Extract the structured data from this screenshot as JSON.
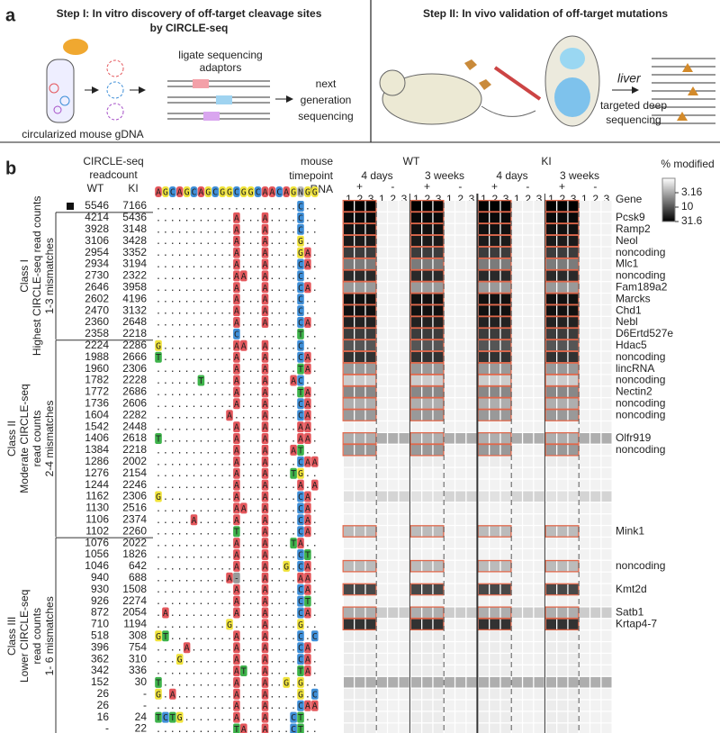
{
  "panel_a": {
    "label": "a",
    "step1_title": [
      "Step I: In vitro discovery of off-target cleavage sites",
      "by CIRCLE-seq"
    ],
    "adaptor_text": [
      "ligate sequencing",
      "adaptors"
    ],
    "ngs_text": [
      "next",
      "generation",
      "sequencing"
    ],
    "gdna_text": "circularized mouse gDNA",
    "step2_title": "Step II: In vivo validation of off-target mutations",
    "organ_text": "liver",
    "deep_seq_text": [
      "targeted deep",
      "sequencing"
    ]
  },
  "panel_b": {
    "label": "b",
    "readcount_header": [
      "CIRCLE-seq",
      "readcount"
    ],
    "readcount_columns": [
      "WT",
      "KI"
    ],
    "heatmap_header": [
      "mouse",
      "timepoint",
      "gRNA"
    ],
    "grna_sequence": "AGCAGCAGCGGCGGCAACAGNGG",
    "base_colors": {
      "A": "#e4575c",
      "C": "#3f8fd8",
      "G": "#f0e33a",
      "T": "#3db24a",
      "N": "#bbbbbb",
      "-": "#999999"
    },
    "genotypes": [
      "WT",
      "KI"
    ],
    "timepoints": [
      "4 days",
      "3 weeks"
    ],
    "grna": [
      "+",
      "-"
    ],
    "replicates": [
      "1",
      "2",
      "3"
    ],
    "gene_header": "Gene",
    "box_color": "#e0674a",
    "colorbar": {
      "title": "% modified",
      "clim": [
        1,
        31.6
      ],
      "ticks": [
        3.16,
        10,
        31.6
      ],
      "log": true
    },
    "on_target": {
      "wt": 5546,
      "ki": 7166,
      "seq": "....................C..",
      "modified": 31,
      "untreated": 1.2,
      "boxed": true
    },
    "classes": [
      {
        "lines": [
          "Class I",
          "Highest CIRCLE-seq read counts",
          "1-3 mismatches"
        ],
        "rows": [
          {
            "wt": 4214,
            "ki": 5436,
            "seq": "...........A...A....C..",
            "gene": "Pcsk9",
            "gene_color": "#6a3d9a",
            "modified": 28,
            "untreated": 1.2,
            "boxed": true
          },
          {
            "wt": 3928,
            "ki": 3148,
            "seq": "...........A...A....C..",
            "gene": "Ramp2",
            "gene_color": "#6a3d9a",
            "modified": 25,
            "untreated": 1.2,
            "boxed": true
          },
          {
            "wt": 3106,
            "ki": 3428,
            "seq": "...........A...A....G..",
            "gene": "Neol",
            "gene_color": "#6a3d9a",
            "modified": 22,
            "untreated": 1.2,
            "boxed": true
          },
          {
            "wt": 2954,
            "ki": 3352,
            "seq": "...........A...A....GA.",
            "gene": "noncoding",
            "gene_color": "#222222",
            "modified": 14,
            "untreated": 1.2,
            "boxed": true
          },
          {
            "wt": 2934,
            "ki": 3194,
            "seq": "...........A...A....CA.",
            "gene": "Mlc1",
            "gene_color": "#6a3d9a",
            "modified": 6,
            "untreated": 1.2,
            "boxed": true
          },
          {
            "wt": 2730,
            "ki": 2322,
            "seq": "...........AA..A....C..",
            "gene": "noncoding",
            "gene_color": "#222222",
            "modified": 18,
            "untreated": 1.2,
            "boxed": true
          },
          {
            "wt": 2646,
            "ki": 3958,
            "seq": "...........A...A....CA.",
            "gene": "Fam189a2",
            "gene_color": "#6a3d9a",
            "modified": 4,
            "untreated": 1.2,
            "boxed": true
          },
          {
            "wt": 2602,
            "ki": 4196,
            "seq": "...........A...A....C..",
            "gene": "Marcks",
            "gene_color": "#6a3d9a",
            "modified": 25,
            "untreated": 1.2,
            "boxed": true
          },
          {
            "wt": 2470,
            "ki": 3132,
            "seq": "...........A...A....C..",
            "gene": "Chd1",
            "gene_color": "#6a3d9a",
            "modified": 25,
            "untreated": 1.2,
            "boxed": true
          },
          {
            "wt": 2360,
            "ki": 2648,
            "seq": "...........A...A....CA.",
            "gene": "Nebl",
            "gene_color": "#6a3d9a",
            "modified": 20,
            "untreated": 1.2,
            "boxed": true
          },
          {
            "wt": 2358,
            "ki": 2218,
            "seq": "...........C........T..",
            "gene": "D6Ertd527e",
            "gene_color": "#6a3d9a",
            "modified": 14,
            "untreated": 1.2,
            "boxed": true
          }
        ]
      },
      {
        "lines": [
          "Class II",
          "Moderate CIRCLE-seq",
          "read counts",
          "2-4 mismatches"
        ],
        "rows": [
          {
            "wt": 2224,
            "ki": 2286,
            "seq": "G..........AA..A....C..",
            "gene": "Hdac5",
            "gene_color": "#6a3d9a",
            "modified": 10,
            "untreated": 1.2,
            "boxed": true
          },
          {
            "wt": 1988,
            "ki": 2666,
            "seq": "T..........A...A....CA.",
            "gene": "noncoding",
            "gene_color": "#222222",
            "modified": 16,
            "untreated": 1.2,
            "boxed": true
          },
          {
            "wt": 1960,
            "ki": 2306,
            "seq": "...........A...A....TA.",
            "gene": "lincRNA",
            "gene_color": "#222222",
            "modified": 4,
            "untreated": 1.2,
            "boxed": true
          },
          {
            "wt": 1782,
            "ki": 2228,
            "seq": "......T....A...A...AC..",
            "gene": "noncoding",
            "gene_color": "#222222",
            "modified": 2,
            "untreated": 1.2,
            "boxed": true
          },
          {
            "wt": 1772,
            "ki": 2686,
            "seq": "...........A...A....TA.",
            "gene": "Nectin2",
            "gene_color": "#6a3d9a",
            "modified": 5,
            "untreated": 1.2,
            "boxed": true
          },
          {
            "wt": 1736,
            "ki": 2606,
            "seq": "...........A...A....CA.",
            "gene": "noncoding",
            "gene_color": "#222222",
            "modified": 3,
            "untreated": 1.2,
            "boxed": true
          },
          {
            "wt": 1604,
            "ki": 2282,
            "seq": "..........A....A....CA.",
            "gene": "noncoding",
            "gene_color": "#222222",
            "modified": 4,
            "untreated": 1.2,
            "boxed": true
          },
          {
            "wt": 1542,
            "ki": 2448,
            "seq": "...........A...A....AA.",
            "modified": 1.2,
            "untreated": 1.2,
            "boxed": false
          },
          {
            "wt": 1406,
            "ki": 2618,
            "seq": "T..........A...A....AA.",
            "gene": "Olfr919",
            "gene_color": "#6a3d9a",
            "modified": 3,
            "untreated": 3,
            "boxed": true
          },
          {
            "wt": 1384,
            "ki": 2218,
            "seq": "...........A...A...AT..",
            "gene": "noncoding",
            "gene_color": "#222222",
            "modified": 4,
            "untreated": 1.2,
            "boxed": true
          },
          {
            "wt": 1286,
            "ki": 2002,
            "seq": "...........A...A....CAA",
            "modified": 1.3,
            "untreated": 1.2,
            "boxed": false
          },
          {
            "wt": 1276,
            "ki": 2154,
            "seq": "...........A...A...TG..",
            "modified": 1.2,
            "untreated": 1.2,
            "boxed": false
          },
          {
            "wt": 1244,
            "ki": 2246,
            "seq": "...........A...A....A.A",
            "modified": 1.2,
            "untreated": 1.2,
            "boxed": false
          },
          {
            "wt": 1162,
            "ki": 2306,
            "seq": "G..........A...A....CA.",
            "modified": 1.5,
            "untreated": 1.8,
            "boxed": false
          },
          {
            "wt": 1130,
            "ki": 2516,
            "seq": "...........AA..A....CA.",
            "modified": 1.2,
            "untreated": 1.2,
            "boxed": false
          },
          {
            "wt": 1106,
            "ki": 2374,
            "seq": ".....A.....A...A....CA.",
            "modified": 1.2,
            "untreated": 1.2,
            "boxed": false
          },
          {
            "wt": 1102,
            "ki": 2260,
            "seq": "...........T...A....CA.",
            "gene": "Mink1",
            "gene_color": "#6a3d9a",
            "modified": 2.5,
            "untreated": 1.2,
            "boxed": true
          }
        ]
      },
      {
        "lines": [
          "Class III",
          "Lower CIRCLE-seq",
          "read counts",
          "1- 6 mismatches"
        ],
        "rows": [
          {
            "wt": 1076,
            "ki": 2022,
            "seq": "...........A...A...TA..",
            "modified": 1.2,
            "untreated": 1.2,
            "boxed": false
          },
          {
            "wt": 1056,
            "ki": 1826,
            "seq": "...........A...A....CT.",
            "modified": 1.2,
            "untreated": 1.2,
            "boxed": false
          },
          {
            "wt": 1046,
            "ki": 642,
            "seq": "...........A...A..G.CA.",
            "gene": "noncoding",
            "gene_color": "#222222",
            "modified": 2.5,
            "untreated": 1.2,
            "boxed": true
          },
          {
            "wt": 940,
            "ki": 688,
            "seq": "..........A-...A....AA.",
            "modified": 1.2,
            "untreated": 1.2,
            "boxed": false
          },
          {
            "wt": 930,
            "ki": 1508,
            "seq": "...........A...A....CA.",
            "gene": "Kmt2d",
            "gene_color": "#6a3d9a",
            "modified": 12,
            "untreated": 1.2,
            "boxed": true
          },
          {
            "wt": 926,
            "ki": 2274,
            "seq": "...........A...A....CT.",
            "modified": 1.2,
            "untreated": 1.2,
            "boxed": false
          },
          {
            "wt": 872,
            "ki": 2054,
            "seq": ".A.........A...A....CA.",
            "gene": "Satb1",
            "gene_color": "#6a3d9a",
            "modified": 3,
            "untreated": 2,
            "boxed": true
          },
          {
            "wt": 710,
            "ki": 1194,
            "seq": "..........G....A....G..",
            "gene": "Krtap4-7",
            "gene_color": "#6a3d9a",
            "modified": 16,
            "untreated": 1.2,
            "boxed": true
          },
          {
            "wt": 518,
            "ki": 308,
            "seq": "GT.........A...A....C.C",
            "modified": 1.3,
            "untreated": 1.2,
            "boxed": false
          },
          {
            "wt": 396,
            "ki": 754,
            "seq": "....A......A...A....CA.",
            "modified": 1.3,
            "untreated": 1.2,
            "boxed": false
          },
          {
            "wt": 362,
            "ki": 310,
            "seq": "...G.......A...A....CA.",
            "modified": 1.3,
            "untreated": 1.2,
            "boxed": false
          },
          {
            "wt": 342,
            "ki": 336,
            "seq": "...........AT..A....TA.",
            "modified": 1.3,
            "untreated": 1.2,
            "boxed": false
          },
          {
            "wt": 152,
            "ki": 30,
            "seq": "T..........A...A..G.G..",
            "modified": 3,
            "untreated": 3,
            "boxed": false
          },
          {
            "wt": 26,
            "ki": "-",
            "seq": "G.A........A...A....G.C",
            "modified": 1.3,
            "untreated": 1.2,
            "boxed": false
          },
          {
            "wt": 26,
            "ki": "-",
            "seq": "...........A...A....CAA",
            "modified": 1.3,
            "untreated": 1.2,
            "boxed": false
          },
          {
            "wt": 16,
            "ki": 24,
            "seq": "TCTG.......A...A...CT..",
            "modified": 1.3,
            "untreated": 1.2,
            "boxed": false
          },
          {
            "wt": "-",
            "ki": 22,
            "seq": "...........TA..A...CT..",
            "modified": 1.3,
            "untreated": 1.2,
            "boxed": false
          }
        ]
      }
    ]
  }
}
